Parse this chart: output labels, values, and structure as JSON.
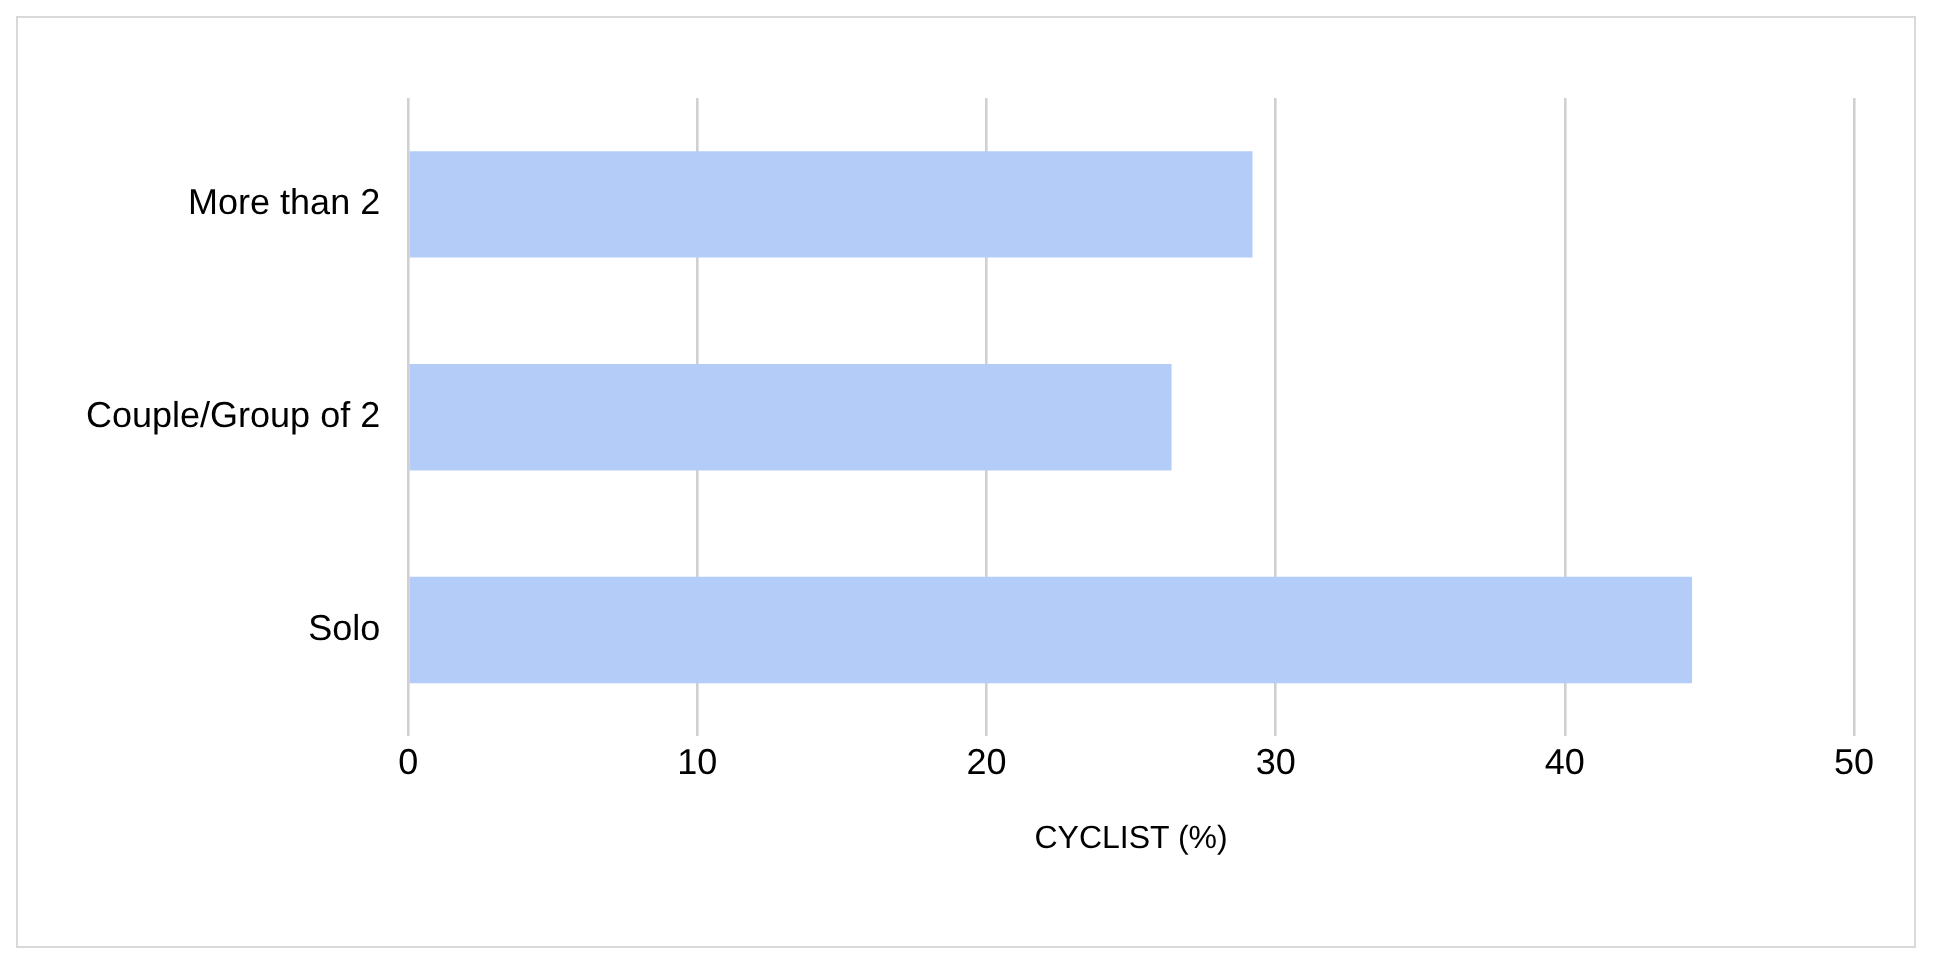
{
  "chart_data": {
    "type": "bar",
    "orientation": "horizontal",
    "categories": [
      "More than 2",
      "Couple/Group of 2",
      "Solo"
    ],
    "values": [
      29.2,
      26.4,
      44.4
    ],
    "color": "#b4cdf8",
    "xlabel": "CYCLIST (%)",
    "xlim": [
      0,
      50
    ],
    "xticks": [
      0,
      10,
      20,
      30,
      40,
      50
    ],
    "grid": "x",
    "legend": false
  }
}
